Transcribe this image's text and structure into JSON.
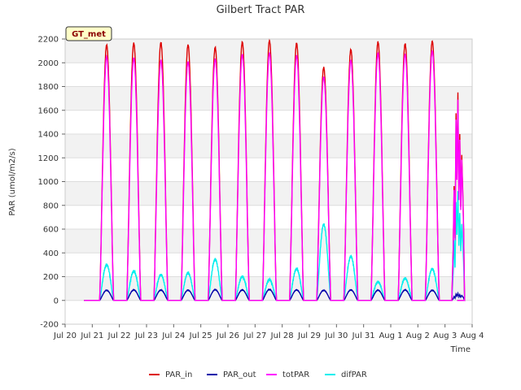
{
  "chart_data": {
    "type": "line",
    "title": "Gilbert Tract PAR",
    "xlabel": "Time",
    "ylabel": "PAR (umol/m2/s)",
    "badge": "GT_met",
    "ylim": [
      -200,
      2200
    ],
    "yticks": [
      -200,
      0,
      200,
      400,
      600,
      800,
      1000,
      1200,
      1400,
      1600,
      1800,
      2000,
      2200
    ],
    "xlim": [
      0,
      15
    ],
    "xticks": [
      0,
      1,
      2,
      3,
      4,
      5,
      6,
      7,
      8,
      9,
      10,
      11,
      12,
      13,
      14,
      15
    ],
    "xtick_labels": [
      "Jul 20",
      "Jul 21",
      "Jul 22",
      "Jul 23",
      "Jul 24",
      "Jul 25",
      "Jul 26",
      "Jul 27",
      "Jul 28",
      "Jul 29",
      "Jul 30",
      "Jul 31",
      "Aug 1",
      "Aug 2",
      "Aug 3",
      "Aug 4"
    ],
    "day_offsets": [
      1,
      2,
      3,
      4,
      5,
      6,
      7,
      8,
      9,
      10,
      11,
      12,
      13
    ],
    "series": [
      {
        "name": "PAR_in",
        "color": "#dd0000",
        "daily_peaks": [
          2150,
          2165,
          2170,
          2150,
          2130,
          2175,
          2185,
          2165,
          1960,
          2110,
          2175,
          2160,
          2180
        ],
        "last_day_peak": 1750
      },
      {
        "name": "PAR_out",
        "color": "#0000aa",
        "daily_peaks": [
          85,
          88,
          87,
          86,
          90,
          88,
          92,
          88,
          85,
          88,
          86,
          88,
          85
        ],
        "last_day_peak": 60
      },
      {
        "name": "totPAR",
        "color": "#ff00ff",
        "daily_peaks": [
          2050,
          2040,
          2020,
          2010,
          2030,
          2070,
          2080,
          2060,
          1880,
          2020,
          2080,
          2070,
          2100
        ],
        "last_day_peak": 1690
      },
      {
        "name": "difPAR",
        "color": "#00eeee",
        "daily_peaks": [
          300,
          245,
          215,
          230,
          345,
          200,
          175,
          265,
          640,
          370,
          155,
          185,
          265
        ],
        "last_day_peak": 920
      }
    ],
    "legend_position": "bottom-center"
  }
}
